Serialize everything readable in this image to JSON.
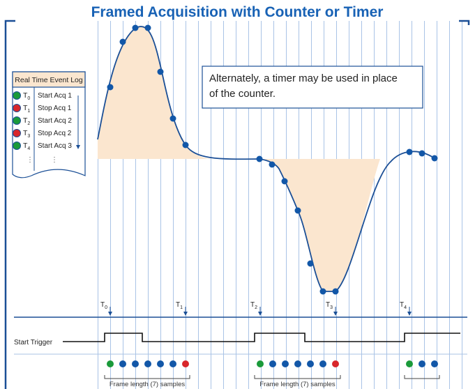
{
  "title": "Framed Acquisition with Counter or Timer",
  "event_log": {
    "title": "Real Time Event Log",
    "entries": [
      {
        "label": "T",
        "sub": "0",
        "action": "Start Acq 1"
      },
      {
        "label": "T",
        "sub": "1",
        "action": "Stop Acq 1"
      },
      {
        "label": "T",
        "sub": "2",
        "action": "Start Acq 2"
      },
      {
        "label": "T",
        "sub": "3",
        "action": "Stop Acq 2"
      },
      {
        "label": "T",
        "sub": "4",
        "action": "Start Acq 3"
      }
    ]
  },
  "note": [
    "Alternately, a timer may be used in place",
    "of the counter."
  ],
  "markers": [
    {
      "label": "T",
      "sub": "0"
    },
    {
      "label": "T",
      "sub": "1"
    },
    {
      "label": "T",
      "sub": "2"
    },
    {
      "label": "T",
      "sub": "3"
    },
    {
      "label": "T",
      "sub": "4"
    }
  ],
  "trigger_label": "Start Trigger",
  "frames": [
    "Frame length (7) samples",
    "Frame length (7) samples"
  ]
}
